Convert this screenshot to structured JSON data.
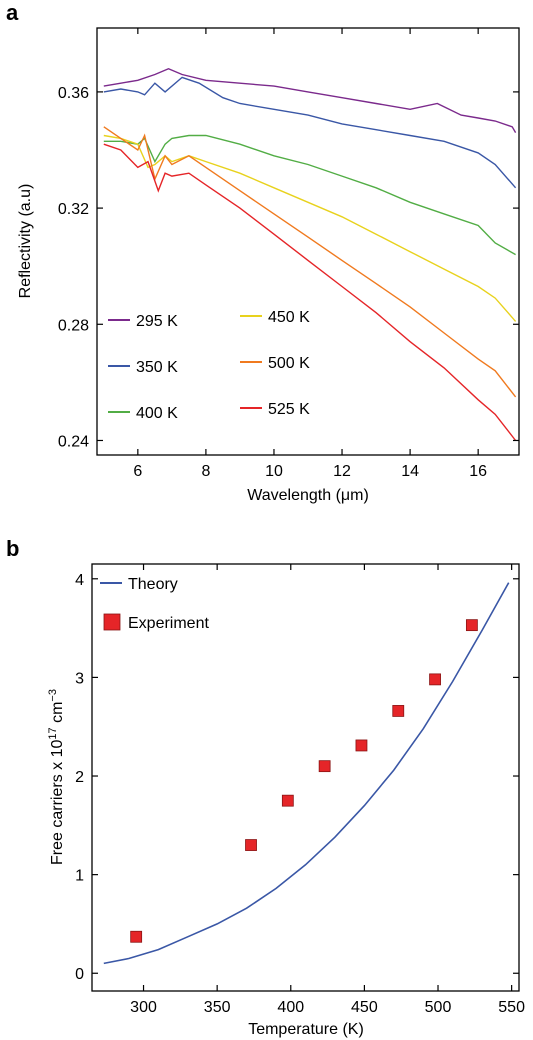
{
  "chart_data": [
    {
      "panel": "a",
      "type": "line",
      "title": "",
      "xlabel": "Wavelength (μm)",
      "ylabel": "Reflectivity (a.u)",
      "xlim": [
        4.8,
        17.2
      ],
      "ylim": [
        0.235,
        0.382
      ],
      "x_ticks": [
        6,
        8,
        10,
        12,
        14,
        16
      ],
      "y_ticks": [
        0.24,
        0.28,
        0.32,
        0.36
      ],
      "y_tick_labels": [
        "0.24",
        "0.28",
        "0.32",
        "0.36"
      ],
      "grid": false,
      "legend": "bottom-left, two columns",
      "series": [
        {
          "name": "295 K",
          "color": "#7b2a8c",
          "x": [
            5.0,
            5.5,
            6.0,
            6.5,
            6.9,
            7.3,
            8.0,
            9.0,
            10.0,
            11.0,
            12.0,
            13.0,
            14.0,
            14.8,
            15.5,
            16.0,
            16.5,
            17.0,
            17.1
          ],
          "y": [
            0.362,
            0.363,
            0.364,
            0.366,
            0.368,
            0.366,
            0.364,
            0.363,
            0.362,
            0.36,
            0.358,
            0.356,
            0.354,
            0.356,
            0.352,
            0.351,
            0.35,
            0.348,
            0.346
          ]
        },
        {
          "name": "350 K",
          "color": "#3a57a6",
          "x": [
            5.0,
            5.5,
            6.0,
            6.2,
            6.5,
            6.8,
            7.3,
            7.8,
            8.5,
            9.0,
            10.0,
            11.0,
            12.0,
            13.0,
            14.0,
            15.0,
            16.0,
            16.5,
            17.1
          ],
          "y": [
            0.36,
            0.361,
            0.36,
            0.359,
            0.363,
            0.36,
            0.365,
            0.363,
            0.358,
            0.356,
            0.354,
            0.352,
            0.349,
            0.347,
            0.345,
            0.343,
            0.339,
            0.335,
            0.327
          ]
        },
        {
          "name": "400 K",
          "color": "#52ad45",
          "x": [
            5.0,
            5.5,
            6.0,
            6.2,
            6.5,
            6.8,
            7.0,
            7.5,
            8.0,
            9.0,
            10.0,
            11.0,
            12.0,
            13.0,
            14.0,
            15.0,
            16.0,
            16.5,
            17.1
          ],
          "y": [
            0.343,
            0.343,
            0.342,
            0.344,
            0.336,
            0.342,
            0.344,
            0.345,
            0.345,
            0.342,
            0.338,
            0.335,
            0.331,
            0.327,
            0.322,
            0.318,
            0.314,
            0.308,
            0.304
          ]
        },
        {
          "name": "450 K",
          "color": "#e8d21d",
          "x": [
            5.0,
            5.5,
            6.0,
            6.3,
            6.5,
            6.8,
            7.0,
            7.5,
            8.0,
            9.0,
            10.0,
            11.0,
            12.0,
            13.0,
            14.0,
            15.0,
            16.0,
            16.5,
            17.1
          ],
          "y": [
            0.345,
            0.344,
            0.342,
            0.334,
            0.335,
            0.338,
            0.336,
            0.338,
            0.336,
            0.332,
            0.327,
            0.322,
            0.317,
            0.311,
            0.305,
            0.299,
            0.293,
            0.289,
            0.281
          ]
        },
        {
          "name": "500 K",
          "color": "#f07a1f",
          "x": [
            5.0,
            5.5,
            6.0,
            6.2,
            6.5,
            6.8,
            7.0,
            7.5,
            8.0,
            9.0,
            10.0,
            11.0,
            12.0,
            13.0,
            14.0,
            15.0,
            16.0,
            16.5,
            17.1
          ],
          "y": [
            0.348,
            0.344,
            0.34,
            0.345,
            0.33,
            0.338,
            0.335,
            0.338,
            0.334,
            0.326,
            0.318,
            0.31,
            0.302,
            0.294,
            0.286,
            0.277,
            0.268,
            0.264,
            0.255
          ]
        },
        {
          "name": "525 K",
          "color": "#e52528",
          "x": [
            5.0,
            5.5,
            6.0,
            6.3,
            6.6,
            6.8,
            7.0,
            7.5,
            8.0,
            9.0,
            10.0,
            11.0,
            12.0,
            13.0,
            14.0,
            15.0,
            16.0,
            16.5,
            17.1
          ],
          "y": [
            0.342,
            0.34,
            0.334,
            0.336,
            0.326,
            0.332,
            0.331,
            0.332,
            0.328,
            0.32,
            0.311,
            0.302,
            0.293,
            0.284,
            0.274,
            0.265,
            0.254,
            0.249,
            0.24
          ]
        }
      ]
    },
    {
      "panel": "b",
      "type": "scatter",
      "title": "",
      "xlabel": "Temperature (K)",
      "ylabel_text": "Free carriers x 10",
      "ylabel_sup1": "17",
      "ylabel_mid": " cm",
      "ylabel_sup2": "−3",
      "xlim": [
        265,
        555
      ],
      "ylim": [
        -0.18,
        4.15
      ],
      "x_ticks": [
        300,
        350,
        400,
        450,
        500,
        550
      ],
      "y_ticks": [
        0,
        1,
        2,
        3,
        4
      ],
      "grid": false,
      "legend": "top-left",
      "series": [
        {
          "name": "Theory",
          "kind": "line",
          "color": "#3a57a6",
          "x": [
            273,
            290,
            310,
            330,
            350,
            370,
            390,
            410,
            430,
            450,
            470,
            490,
            510,
            530,
            548
          ],
          "y": [
            0.1,
            0.15,
            0.24,
            0.37,
            0.5,
            0.66,
            0.86,
            1.1,
            1.38,
            1.7,
            2.06,
            2.48,
            2.96,
            3.48,
            3.96
          ]
        },
        {
          "name": "Experiment",
          "kind": "marker",
          "color": "#e52528",
          "x": [
            295,
            373,
            398,
            423,
            448,
            473,
            498,
            523
          ],
          "y": [
            0.37,
            1.3,
            1.75,
            2.1,
            2.31,
            2.66,
            2.98,
            3.53
          ]
        }
      ]
    }
  ],
  "panels": {
    "a": {
      "letter": "a"
    },
    "b": {
      "letter": "b"
    }
  }
}
